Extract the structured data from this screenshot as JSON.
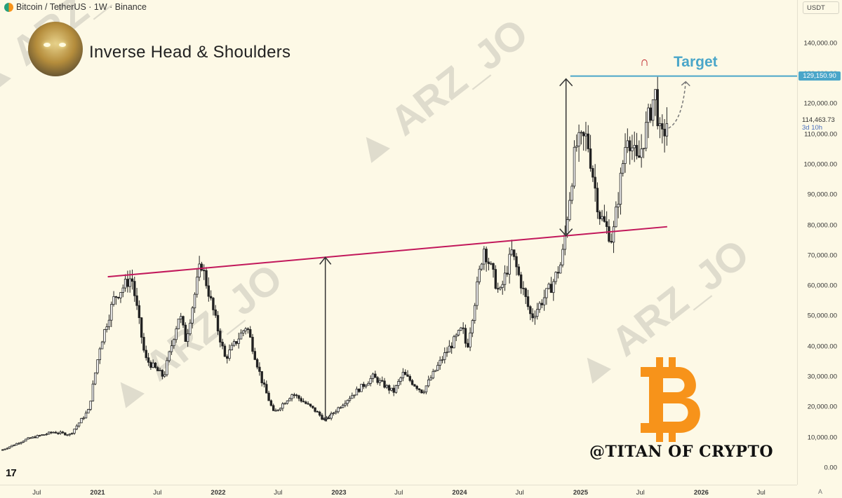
{
  "header": {
    "symbol": "Bitcoin / TetherUS · 1W · Binance"
  },
  "title": "Inverse Head & Shoulders",
  "target_label": "Target",
  "currency_button": "USDT",
  "watermark": "ARZ_JO",
  "credit": "@TITAN OF CRYPTO",
  "tv_logo": "17",
  "auto_label": "A",
  "colors": {
    "neckline": "#c2185b",
    "target": "#4aa6c9",
    "bitcoin": "#f7931a",
    "up": "#ffffff",
    "down": "#222222"
  },
  "icons": [
    "magnet-icon",
    "bitcoin-logo-icon",
    "tradingview-logo-icon"
  ],
  "chart_data": {
    "type": "candlestick",
    "symbol": "Bitcoin / TetherUS",
    "interval": "1W",
    "exchange": "Binance",
    "title": "Inverse Head & Shoulders",
    "ylim": [
      0,
      145000
    ],
    "yticks": [
      "0.00",
      "10,000.00",
      "20,000.00",
      "30,000.00",
      "40,000.00",
      "50,000.00",
      "60,000.00",
      "70,000.00",
      "80,000.00",
      "90,000.00",
      "100,000.00",
      "110,000.00",
      "120,000.00",
      "130,000.00",
      "140,000.00"
    ],
    "xticks": [
      "Jul",
      "2021",
      "Jul",
      "2022",
      "Jul",
      "2023",
      "Jul",
      "2024",
      "Jul",
      "2025",
      "Jul",
      "2026",
      "Jul"
    ],
    "price_path": [
      [
        "2020-03-20",
        6000
      ],
      [
        "2020-06-01",
        9500
      ],
      [
        "2020-08-20",
        11800
      ],
      [
        "2020-10-10",
        11000
      ],
      [
        "2020-12-05",
        19000
      ],
      [
        "2021-01-08",
        40000
      ],
      [
        "2021-02-20",
        56000
      ],
      [
        "2021-04-14",
        63000
      ],
      [
        "2021-05-25",
        36000
      ],
      [
        "2021-07-20",
        30000
      ],
      [
        "2021-09-06",
        51000
      ],
      [
        "2021-09-25",
        42000
      ],
      [
        "2021-11-10",
        68000
      ],
      [
        "2022-01-22",
        36000
      ],
      [
        "2022-03-28",
        47000
      ],
      [
        "2022-05-12",
        29000
      ],
      [
        "2022-06-18",
        18000
      ],
      [
        "2022-08-14",
        24500
      ],
      [
        "2022-10-20",
        19000
      ],
      [
        "2022-11-21",
        15500
      ],
      [
        "2023-01-20",
        22000
      ],
      [
        "2023-04-14",
        30000
      ],
      [
        "2023-06-15",
        25000
      ],
      [
        "2023-07-14",
        31000
      ],
      [
        "2023-09-11",
        25000
      ],
      [
        "2023-11-15",
        37000
      ],
      [
        "2024-01-10",
        46000
      ],
      [
        "2024-01-23",
        39000
      ],
      [
        "2024-03-14",
        73000
      ],
      [
        "2024-05-01",
        57000
      ],
      [
        "2024-06-07",
        71000
      ],
      [
        "2024-08-05",
        49500
      ],
      [
        "2024-10-05",
        60000
      ],
      [
        "2024-11-05",
        68000
      ],
      [
        "2024-12-17",
        106000
      ],
      [
        "2025-01-20",
        109000
      ],
      [
        "2025-02-26",
        84000
      ],
      [
        "2025-04-07",
        75000
      ],
      [
        "2025-05-22",
        111000
      ],
      [
        "2025-06-22",
        100000
      ],
      [
        "2025-08-14",
        124000
      ],
      [
        "2025-09-01",
        107000
      ],
      [
        "2025-09-20",
        114463
      ]
    ],
    "neckline": {
      "start": [
        "2021-02-01",
        63000
      ],
      "end": [
        "2025-09-20",
        79500
      ]
    },
    "head_low": [
      "2022-11-21",
      15500
    ],
    "target": 129150.9,
    "target_label": "129,150.90",
    "last_price": "114,463.73",
    "countdown": "3d 10h",
    "annotations": [
      "Inverse Head & Shoulders",
      "Target"
    ]
  }
}
